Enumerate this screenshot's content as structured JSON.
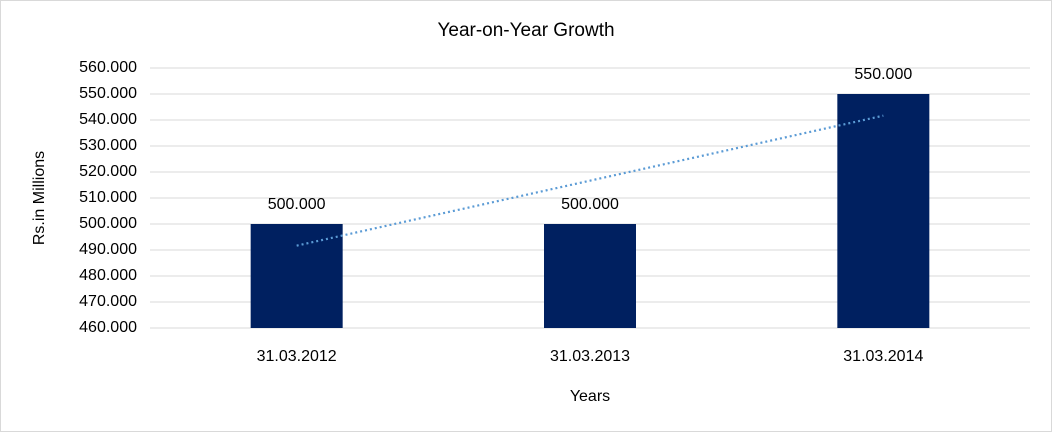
{
  "chart_data": {
    "type": "bar",
    "title": "Year-on-Year Growth",
    "x_label": "Years",
    "y_label": "Rs.in Millions",
    "categories": [
      "31.03.2012",
      "31.03.2013",
      "31.03.2014"
    ],
    "values": [
      500,
      500,
      550
    ],
    "value_labels": [
      "500.000",
      "500.000",
      "550.000"
    ],
    "color": "#002060",
    "trendline": {
      "values": [
        491.667,
        516.667,
        541.667
      ],
      "color": "#5b9bd5"
    },
    "ylim": [
      460,
      560
    ],
    "yticks": [
      {
        "value": 460,
        "label": "460.000"
      },
      {
        "value": 470,
        "label": "470.000"
      },
      {
        "value": 480,
        "label": "480.000"
      },
      {
        "value": 490,
        "label": "490.000"
      },
      {
        "value": 500,
        "label": "500.000"
      },
      {
        "value": 510,
        "label": "510.000"
      },
      {
        "value": 520,
        "label": "520.000"
      },
      {
        "value": 530,
        "label": "530.000"
      },
      {
        "value": 540,
        "label": "540.000"
      },
      {
        "value": 550,
        "label": "550.000"
      },
      {
        "value": 560,
        "label": "560.000"
      }
    ],
    "grid": true
  }
}
